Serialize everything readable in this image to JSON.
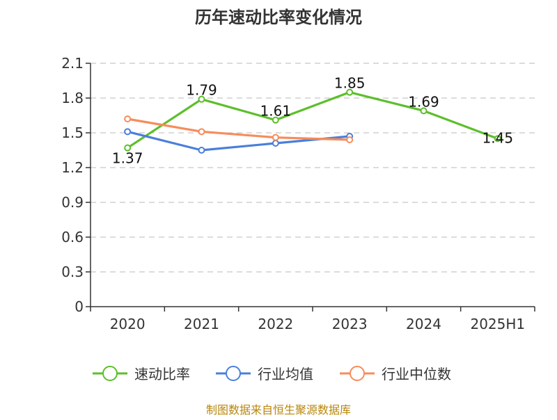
{
  "chart_data": {
    "type": "line",
    "title": "历年速动比率变化情况",
    "categories": [
      "2020",
      "2021",
      "2022",
      "2023",
      "2024",
      "2025H1"
    ],
    "y_ticks": [
      "0",
      "0.3",
      "0.6",
      "0.9",
      "1.2",
      "1.5",
      "1.8",
      "2.1"
    ],
    "ylim": [
      0,
      2.1
    ],
    "grid": true,
    "legend_position": "bottom",
    "series": [
      {
        "name": "速动比率",
        "color": "#5cbf2a",
        "values": [
          1.37,
          1.79,
          1.61,
          1.85,
          1.69,
          1.45
        ],
        "labels_shown": true
      },
      {
        "name": "行业均值",
        "color": "#4a7fdc",
        "values": [
          1.51,
          1.35,
          1.41,
          1.47,
          null,
          null
        ],
        "labels_shown": false
      },
      {
        "name": "行业中位数",
        "color": "#f78c5a",
        "values": [
          1.62,
          1.51,
          1.46,
          1.44,
          null,
          null
        ],
        "labels_shown": false
      }
    ],
    "data_labels": [
      "1.37",
      "1.79",
      "1.61",
      "1.85",
      "1.69",
      "1.45"
    ]
  },
  "footer": {
    "source": "制图数据来自恒生聚源数据库"
  }
}
